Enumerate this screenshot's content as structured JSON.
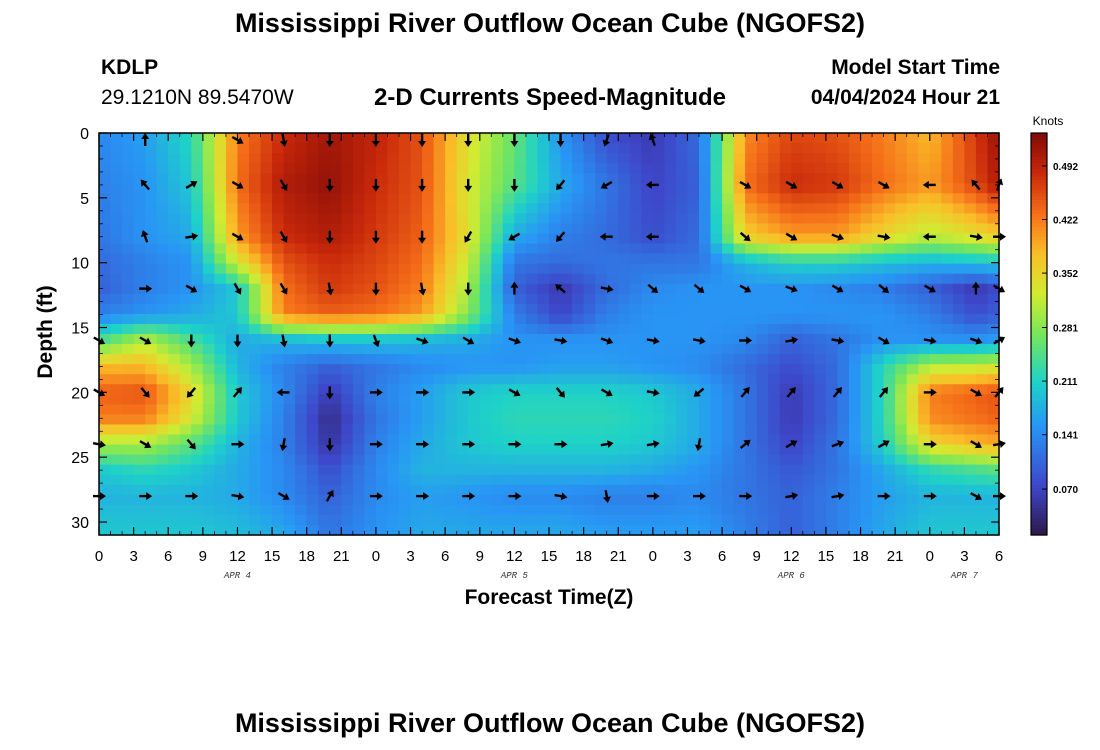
{
  "page": {
    "title": "Mississippi River Outflow Ocean Cube (NGOFS2)",
    "footer_title": "Mississippi River Outflow Ocean Cube (NGOFS2)"
  },
  "station": {
    "name": "KDLP",
    "coords": "29.1210N  89.5470W"
  },
  "model": {
    "label": "Model Start Time",
    "time": "04/04/2024 Hour 21"
  },
  "chart_data": {
    "type": "heatmap",
    "subtitle": "2-D Currents Speed-Magnitude",
    "xlabel": "Forecast Time(Z)",
    "ylabel": "Depth (ft)",
    "xlim": [
      0,
      78
    ],
    "ylim": [
      0,
      31
    ],
    "y_inverted": true,
    "grid": false,
    "x_ticks": [
      0,
      3,
      6,
      9,
      12,
      15,
      18,
      21,
      24,
      27,
      30,
      33,
      36,
      39,
      42,
      45,
      48,
      51,
      54,
      57,
      60,
      63,
      66,
      69,
      72,
      75,
      78
    ],
    "x_tick_labels": [
      "0",
      "3",
      "6",
      "9",
      "12",
      "15",
      "18",
      "21",
      "0",
      "3",
      "6",
      "9",
      "12",
      "15",
      "18",
      "21",
      "0",
      "3",
      "6",
      "9",
      "12",
      "15",
      "18",
      "21",
      "0",
      "3",
      "6"
    ],
    "day_labels": [
      {
        "x": 12,
        "text": "APR 4"
      },
      {
        "x": 36,
        "text": "APR 5"
      },
      {
        "x": 60,
        "text": "APR 6"
      },
      {
        "x": 75,
        "text": "APR 7"
      }
    ],
    "y_ticks": [
      0,
      5,
      10,
      15,
      20,
      25,
      30
    ],
    "colorbar": {
      "unit": "Knots",
      "min": 0.01,
      "max": 0.535,
      "tick_values": [
        0.492,
        0.422,
        0.352,
        0.281,
        0.211,
        0.141,
        0.07
      ],
      "tick_labels": [
        "0.492",
        "0.422",
        "0.352",
        "0.281",
        "0.211",
        "0.141",
        "0.070"
      ]
    },
    "layers": [
      {
        "depth": 0,
        "knots": [
          0.14,
          0.16,
          0.22,
          0.42,
          0.48,
          0.51,
          0.49,
          0.45,
          0.34,
          0.26,
          0.15,
          0.08,
          0.06,
          0.11,
          0.41,
          0.46,
          0.45,
          0.42,
          0.38,
          0.47,
          0.52
        ]
      },
      {
        "depth": 4,
        "knots": [
          0.13,
          0.15,
          0.2,
          0.43,
          0.5,
          0.52,
          0.48,
          0.45,
          0.33,
          0.25,
          0.17,
          0.12,
          0.07,
          0.1,
          0.43,
          0.48,
          0.47,
          0.43,
          0.4,
          0.46,
          0.5
        ]
      },
      {
        "depth": 8,
        "knots": [
          0.12,
          0.15,
          0.17,
          0.4,
          0.48,
          0.5,
          0.47,
          0.44,
          0.34,
          0.17,
          0.13,
          0.11,
          0.08,
          0.11,
          0.36,
          0.4,
          0.4,
          0.35,
          0.31,
          0.34,
          0.36
        ]
      },
      {
        "depth": 10,
        "knots": [
          0.11,
          0.13,
          0.15,
          0.33,
          0.45,
          0.48,
          0.46,
          0.43,
          0.32,
          0.12,
          0.11,
          0.12,
          0.12,
          0.12,
          0.18,
          0.21,
          0.21,
          0.19,
          0.18,
          0.19,
          0.2
        ]
      },
      {
        "depth": 12,
        "knots": [
          0.1,
          0.13,
          0.15,
          0.2,
          0.43,
          0.47,
          0.45,
          0.42,
          0.3,
          0.1,
          0.06,
          0.11,
          0.14,
          0.15,
          0.15,
          0.15,
          0.14,
          0.13,
          0.1,
          0.06,
          0.08
        ]
      },
      {
        "depth": 14,
        "knots": [
          0.13,
          0.15,
          0.17,
          0.2,
          0.42,
          0.44,
          0.43,
          0.4,
          0.28,
          0.13,
          0.07,
          0.13,
          0.15,
          0.15,
          0.15,
          0.15,
          0.15,
          0.15,
          0.13,
          0.08,
          0.1
        ]
      },
      {
        "depth": 16,
        "knots": [
          0.24,
          0.31,
          0.24,
          0.17,
          0.18,
          0.19,
          0.19,
          0.18,
          0.17,
          0.15,
          0.15,
          0.15,
          0.15,
          0.15,
          0.14,
          0.1,
          0.12,
          0.15,
          0.15,
          0.15,
          0.16
        ]
      },
      {
        "depth": 18,
        "knots": [
          0.38,
          0.38,
          0.3,
          0.18,
          0.13,
          0.1,
          0.12,
          0.14,
          0.15,
          0.15,
          0.16,
          0.16,
          0.15,
          0.14,
          0.11,
          0.08,
          0.11,
          0.22,
          0.31,
          0.32,
          0.33
        ]
      },
      {
        "depth": 20,
        "knots": [
          0.44,
          0.45,
          0.35,
          0.2,
          0.14,
          0.06,
          0.13,
          0.16,
          0.2,
          0.21,
          0.21,
          0.21,
          0.2,
          0.17,
          0.12,
          0.06,
          0.11,
          0.22,
          0.42,
          0.44,
          0.45
        ]
      },
      {
        "depth": 22,
        "knots": [
          0.42,
          0.42,
          0.33,
          0.2,
          0.13,
          0.04,
          0.12,
          0.16,
          0.2,
          0.22,
          0.22,
          0.22,
          0.21,
          0.17,
          0.12,
          0.06,
          0.11,
          0.22,
          0.41,
          0.43,
          0.44
        ]
      },
      {
        "depth": 24,
        "knots": [
          0.3,
          0.3,
          0.25,
          0.18,
          0.13,
          0.05,
          0.13,
          0.17,
          0.2,
          0.21,
          0.21,
          0.21,
          0.2,
          0.17,
          0.12,
          0.07,
          0.12,
          0.21,
          0.35,
          0.38,
          0.39
        ]
      },
      {
        "depth": 26,
        "knots": [
          0.2,
          0.22,
          0.2,
          0.17,
          0.14,
          0.08,
          0.14,
          0.18,
          0.18,
          0.18,
          0.18,
          0.18,
          0.17,
          0.15,
          0.12,
          0.09,
          0.12,
          0.17,
          0.22,
          0.24,
          0.25
        ]
      },
      {
        "depth": 28,
        "knots": [
          0.18,
          0.18,
          0.18,
          0.17,
          0.14,
          0.1,
          0.14,
          0.16,
          0.15,
          0.14,
          0.14,
          0.13,
          0.13,
          0.14,
          0.12,
          0.1,
          0.13,
          0.16,
          0.18,
          0.18,
          0.18
        ]
      },
      {
        "depth": 31,
        "knots": [
          0.2,
          0.2,
          0.2,
          0.19,
          0.17,
          0.12,
          0.15,
          0.17,
          0.17,
          0.17,
          0.17,
          0.16,
          0.16,
          0.16,
          0.13,
          0.1,
          0.13,
          0.17,
          0.2,
          0.2,
          0.2
        ]
      }
    ],
    "layer_times": [
      0,
      4,
      8,
      12,
      16,
      20,
      24,
      28,
      32,
      36,
      40,
      44,
      48,
      52,
      56,
      60,
      64,
      68,
      72,
      76,
      78
    ],
    "vectors": {
      "times": [
        0,
        4,
        8,
        12,
        16,
        20,
        24,
        28,
        32,
        36,
        40,
        44,
        48,
        52,
        56,
        60,
        64,
        68,
        72,
        76,
        78
      ],
      "depths": [
        0,
        4,
        8,
        12,
        16,
        20,
        24,
        28
      ],
      "directions_deg": [
        [
          null,
          0,
          null,
          120,
          170,
          180,
          180,
          180,
          180,
          180,
          180,
          200,
          340,
          null,
          null,
          null,
          null,
          null,
          null,
          null,
          null
        ],
        [
          null,
          320,
          60,
          120,
          150,
          180,
          180,
          180,
          180,
          180,
          220,
          240,
          270,
          null,
          120,
          120,
          120,
          120,
          270,
          320,
          20
        ],
        [
          null,
          340,
          80,
          120,
          150,
          180,
          180,
          180,
          210,
          240,
          220,
          270,
          270,
          null,
          130,
          120,
          110,
          100,
          270,
          100,
          90
        ],
        [
          null,
          90,
          120,
          150,
          150,
          170,
          180,
          170,
          180,
          0,
          310,
          100,
          130,
          130,
          120,
          110,
          120,
          130,
          120,
          0,
          120
        ],
        [
          120,
          120,
          180,
          180,
          170,
          180,
          160,
          110,
          120,
          110,
          100,
          110,
          100,
          100,
          90,
          80,
          100,
          120,
          100,
          110,
          60
        ],
        [
          120,
          140,
          220,
          40,
          270,
          180,
          90,
          90,
          90,
          120,
          140,
          120,
          100,
          230,
          40,
          40,
          40,
          40,
          90,
          120,
          40
        ],
        [
          100,
          120,
          140,
          90,
          190,
          180,
          90,
          90,
          90,
          90,
          90,
          80,
          80,
          190,
          50,
          60,
          70,
          60,
          90,
          120,
          80
        ],
        [
          90,
          90,
          90,
          100,
          120,
          30,
          90,
          90,
          90,
          90,
          100,
          170,
          90,
          90,
          90,
          80,
          80,
          90,
          90,
          120,
          90
        ]
      ]
    }
  }
}
